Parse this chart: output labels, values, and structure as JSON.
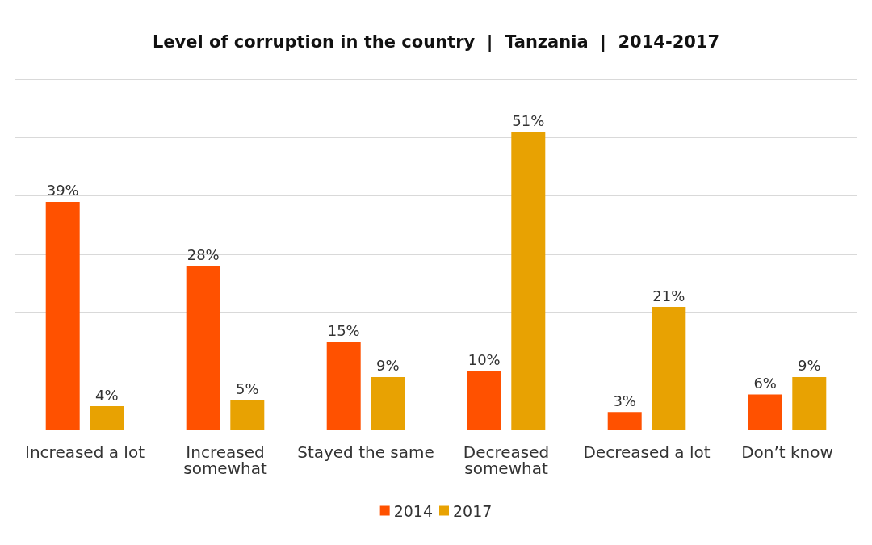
{
  "chart_data": {
    "type": "bar",
    "title": "Level of corruption in the country  |  Tanzania  |  2014-2017",
    "categories": [
      "Increased a lot",
      "Increased somewhat",
      "Stayed the same",
      "Decreased somewhat",
      "Decreased a lot",
      "Don’t know"
    ],
    "series": [
      {
        "name": "2014",
        "color": "#ff5100",
        "values": [
          39,
          28,
          15,
          10,
          3,
          6
        ],
        "value_labels": [
          "39%",
          "28%",
          "15%",
          "10%",
          "3%",
          "6%"
        ]
      },
      {
        "name": "2017",
        "color": "#e8a202",
        "values": [
          4,
          5,
          9,
          51,
          21,
          9
        ],
        "value_labels": [
          "4%",
          "5%",
          "9%",
          "51%",
          "21%",
          "9%"
        ]
      }
    ],
    "tick_labels": "x",
    "grid": "y",
    "legend": "bottom"
  }
}
